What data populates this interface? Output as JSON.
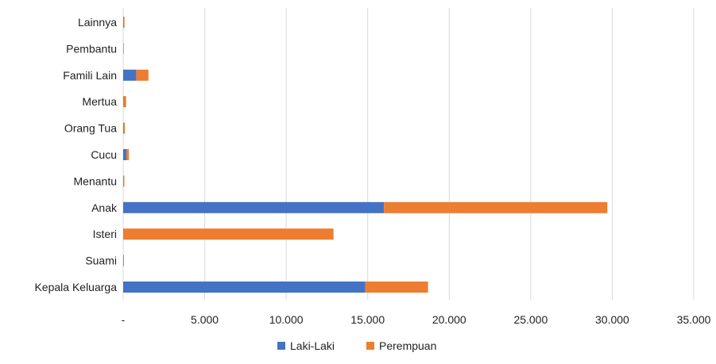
{
  "chart_data": {
    "type": "bar",
    "orientation": "horizontal",
    "stacked": true,
    "categories": [
      "Kepala Keluarga",
      "Suami",
      "Isteri",
      "Anak",
      "Menantu",
      "Cucu",
      "Orang Tua",
      "Mertua",
      "Famili Lain",
      "Pembantu",
      "Lainnya"
    ],
    "series": [
      {
        "name": "Laki-Laki",
        "color": "#4472C4",
        "values": [
          14850,
          20,
          0,
          16000,
          30,
          200,
          20,
          30,
          800,
          10,
          20
        ]
      },
      {
        "name": "Perempuan",
        "color": "#ED7D31",
        "values": [
          3850,
          20,
          12900,
          13700,
          40,
          150,
          80,
          150,
          750,
          20,
          60
        ]
      }
    ],
    "xlim": [
      0,
      35000
    ],
    "xticks": [
      0,
      5000,
      10000,
      15000,
      20000,
      25000,
      30000,
      35000
    ],
    "xtick_labels": [
      "-",
      "5.000",
      "10.000",
      "15.000",
      "20.000",
      "25.000",
      "30.000",
      "35.000"
    ],
    "grid": true,
    "legend_position": "bottom",
    "title": "",
    "xlabel": "",
    "ylabel": ""
  }
}
